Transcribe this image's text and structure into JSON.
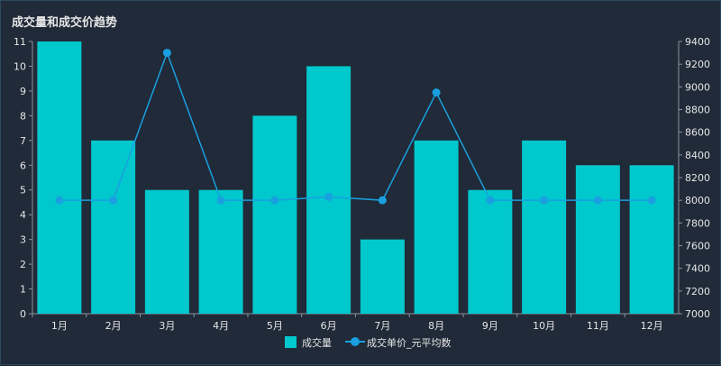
{
  "chart_data": {
    "type": "bar",
    "title": "成交量和成交价趋势",
    "categories": [
      "1月",
      "2月",
      "3月",
      "4月",
      "5月",
      "6月",
      "7月",
      "8月",
      "9月",
      "10月",
      "11月",
      "12月"
    ],
    "series": [
      {
        "name": "成交量",
        "type": "bar",
        "axis": "left",
        "color": "#00c8cc",
        "values": [
          11,
          7,
          5,
          5,
          8,
          10,
          3,
          7,
          5,
          7,
          6,
          6
        ]
      },
      {
        "name": "成交单价_元平均数",
        "type": "line",
        "axis": "right",
        "color": "#1a9fe0",
        "values": [
          8000,
          8000,
          9300,
          8000,
          8000,
          8030,
          8000,
          8950,
          8000,
          8000,
          8000,
          8000
        ]
      }
    ],
    "y_left": {
      "range": [
        0,
        11
      ],
      "ticks": [
        0,
        1,
        2,
        3,
        4,
        5,
        6,
        7,
        8,
        9,
        10,
        11
      ]
    },
    "y_right": {
      "range": [
        7000,
        9400
      ],
      "ticks": [
        7000,
        7200,
        7400,
        7600,
        7800,
        8000,
        8200,
        8400,
        8600,
        8800,
        9000,
        9200,
        9400
      ]
    },
    "grid": false,
    "legend_position": "bottom"
  }
}
